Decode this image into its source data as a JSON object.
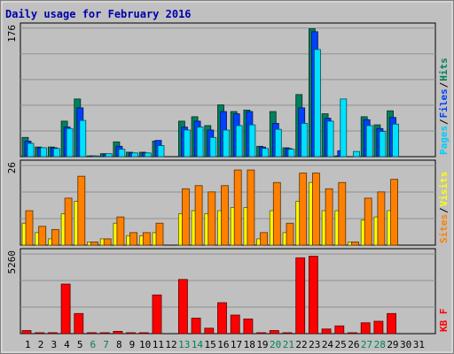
{
  "chart_data": {
    "type": "bar",
    "title": "Daily usage for February 2016",
    "x": [
      1,
      2,
      3,
      4,
      5,
      6,
      7,
      8,
      9,
      10,
      11,
      12,
      13,
      14,
      15,
      16,
      17,
      18,
      19,
      20,
      21,
      22,
      23,
      24,
      25,
      26,
      27,
      28,
      29,
      30,
      31
    ],
    "weekend_days": [
      6,
      7,
      13,
      14,
      20,
      21,
      27,
      28
    ],
    "panels": [
      {
        "id": "hits",
        "ymax_label": "176",
        "ymax": 176,
        "series": [
          {
            "name": "Hits",
            "color": "#00805c",
            "values": [
              26,
              13,
              13,
              48,
              78,
              1,
              4,
              20,
              6,
              6,
              21,
              0,
              48,
              54,
              42,
              70,
              61,
              63,
              14,
              61,
              12,
              84,
              173,
              58,
              1,
              0,
              54,
              43,
              62,
              0,
              0
            ]
          },
          {
            "name": "Files",
            "color": "#0040ff",
            "values": [
              21,
              12,
              12,
              40,
              66,
              1,
              3,
              14,
              5,
              5,
              22,
              0,
              40,
              48,
              36,
              61,
              58,
              61,
              13,
              45,
              11,
              66,
              169,
              52,
              8,
              0,
              50,
              38,
              53,
              0,
              0
            ]
          },
          {
            "name": "Pages",
            "color": "#00e0ff",
            "values": [
              18,
              12,
              11,
              38,
              49,
              1,
              4,
              10,
              5,
              5,
              15,
              0,
              36,
              40,
              26,
              36,
              42,
              43,
              11,
              37,
              10,
              45,
              145,
              48,
              78,
              7,
              42,
              34,
              44,
              0,
              0
            ]
          }
        ],
        "legend_labels": [
          "Pages",
          "/",
          "Files",
          "/",
          "Hits"
        ],
        "legend_colors": [
          "#00ccff",
          "#000000",
          "#0040ff",
          "#000000",
          "#00805c"
        ]
      },
      {
        "id": "visits",
        "ymax_label": "26",
        "ymax": 26,
        "series": [
          {
            "name": "Visits",
            "color": "#ffff00",
            "values": [
              7,
              4,
              2,
              10,
              14,
              1,
              2,
              7,
              3,
              3,
              4,
              0,
              10,
              11,
              10,
              11,
              12,
              12,
              2,
              11,
              4,
              14,
              20,
              11,
              11,
              1,
              8,
              9,
              11,
              0,
              0
            ]
          },
          {
            "name": "Sites",
            "color": "#ff8000",
            "values": [
              11,
              6,
              5,
              15,
              22,
              1,
              2,
              9,
              4,
              4,
              7,
              0,
              18,
              19,
              17,
              19,
              24,
              24,
              4,
              20,
              7,
              23,
              23,
              18,
              20,
              1,
              15,
              17,
              21,
              0,
              0
            ]
          }
        ],
        "legend_labels": [
          "Sites",
          "/",
          "Visits"
        ],
        "legend_colors": [
          "#ff8000",
          "#000000",
          "#ffff00"
        ]
      },
      {
        "id": "kbytes",
        "ymax_label": "5260",
        "ymax": 5260,
        "series": [
          {
            "name": "KB F",
            "color": "#ff0000",
            "values": [
              200,
              60,
              60,
              3200,
              1300,
              60,
              60,
              150,
              60,
              60,
              2500,
              0,
              3500,
              1000,
              350,
              2000,
              1200,
              950,
              60,
              200,
              60,
              4900,
              5000,
              300,
              500,
              60,
              700,
              800,
              1300,
              0,
              0
            ]
          }
        ],
        "legend_labels": [
          "KB F"
        ],
        "legend_colors": [
          "#ff0000"
        ]
      }
    ]
  }
}
